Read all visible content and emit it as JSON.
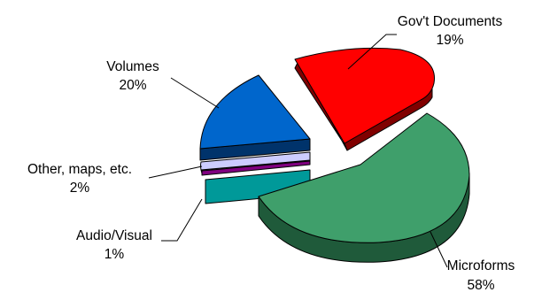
{
  "chart_data": {
    "type": "pie",
    "style": "3d-exploded",
    "title": "",
    "slices": [
      {
        "key": "govdocs",
        "line1": "Gov't Documents",
        "line2": "19%",
        "value": 19,
        "top": "#ff0000",
        "side": "#800000"
      },
      {
        "key": "microforms",
        "line1": "Microforms",
        "line2": "58%",
        "value": 58,
        "top": "#3f9f6b",
        "side": "#1f5a3a"
      },
      {
        "key": "audio",
        "line1": "Audio/Visual",
        "line2": "1%",
        "value": 1,
        "top": "#800080",
        "side": "#400040"
      },
      {
        "key": "other",
        "line1": "Other, maps, etc.",
        "line2": "2%",
        "value": 2,
        "top": "#ccccff",
        "side": "#666699"
      },
      {
        "key": "volumes",
        "line1": "Volumes",
        "line2": "20%",
        "value": 20,
        "top": "#0066cc",
        "side": "#00336b"
      }
    ],
    "teal_side": "#009999"
  }
}
